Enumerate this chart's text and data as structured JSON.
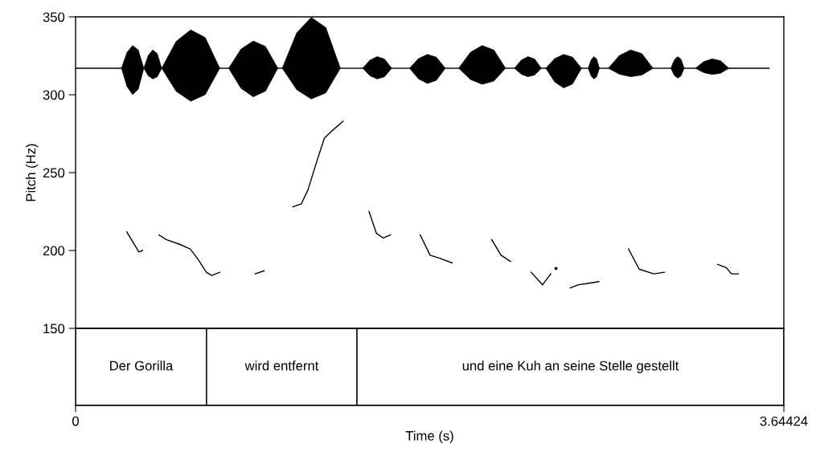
{
  "chart_data": [
    {
      "type": "line",
      "ylabel": "Pitch (Hz)",
      "xlim": [
        0,
        3.64424
      ],
      "ylim": [
        150,
        350
      ],
      "yticks": [
        150,
        200,
        250,
        300,
        350
      ],
      "tick_labels": "y",
      "grid": false,
      "series": [
        {
          "color": "#000000",
          "x": [
            0.263,
            0.326,
            0.344,
            null,
            0.429,
            0.466,
            0.535,
            0.59,
            0.632,
            0.673,
            0.7,
            0.742,
            null,
            0.924,
            0.97,
            null,
            1.118,
            1.162,
            1.196,
            1.238,
            1.28,
            1.321,
            1.376,
            null,
            1.51,
            1.548,
            1.583,
            1.62,
            null,
            1.773,
            1.824,
            1.873,
            1.937,
            null,
            2.141,
            2.189,
            2.238,
            null,
            2.344,
            2.403,
            2.445,
            null,
            2.545,
            2.589,
            2.644,
            2.693,
            null,
            2.845,
            2.9,
            2.975,
            3.03,
            null,
            3.304,
            3.348,
            3.375,
            3.41
          ],
          "values": [
            212,
            199,
            200,
            null,
            210,
            207,
            204,
            201,
            194,
            186,
            184,
            186,
            null,
            185,
            187,
            null,
            228,
            230,
            239,
            256,
            272,
            277,
            283,
            null,
            225,
            211,
            208,
            210,
            null,
            210,
            197,
            195,
            192,
            null,
            207,
            197,
            193,
            null,
            186,
            178,
            185,
            null,
            176,
            178,
            179,
            180,
            null,
            201,
            188,
            185,
            186,
            null,
            191,
            189,
            185,
            185
          ]
        },
        {
          "type": "scatter",
          "color": "#000000",
          "x": [
            2.472
          ],
          "values": [
            188.5
          ]
        }
      ]
    },
    {
      "type": "bar",
      "orientation": "horizontal",
      "stacked": true,
      "xlabel": "Time (s)",
      "xlim": [
        0,
        3.64424
      ],
      "xticks": [
        0,
        3.64424
      ],
      "tick_labels": "x",
      "categories": [
        null
      ],
      "series": [
        {
          "color": "#ffffff",
          "values": [
            0.674
          ],
          "value_labels": [
            "Der Gorilla"
          ]
        },
        {
          "color": "#ffffff",
          "values": [
            0.774
          ],
          "value_labels": [
            "wird entfernt"
          ]
        },
        {
          "color": "#ffffff",
          "values": [
            2.196
          ],
          "value_labels": [
            "und eine Kuh an seine Stelle gestellt"
          ]
        }
      ]
    }
  ]
}
